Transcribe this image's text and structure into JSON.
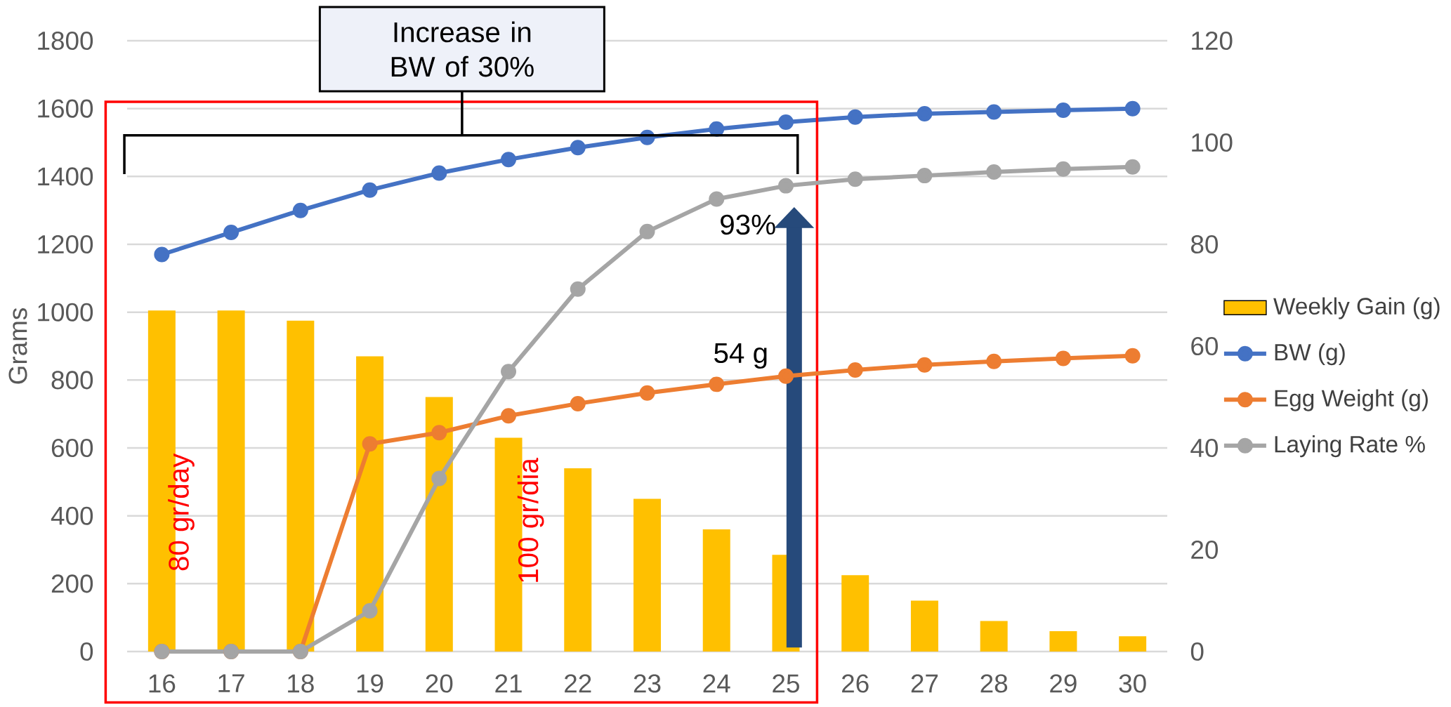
{
  "chart_data": {
    "type": "line",
    "categories": [
      "16",
      "17",
      "18",
      "19",
      "20",
      "21",
      "22",
      "23",
      "24",
      "25",
      "26",
      "27",
      "28",
      "29",
      "30"
    ],
    "ylabel": "Grams",
    "ylim": [
      0,
      1800
    ],
    "yticks": [
      0,
      200,
      400,
      600,
      800,
      1000,
      1200,
      1400,
      1600,
      1800
    ],
    "y2lim": [
      0,
      120
    ],
    "y2ticks": [
      0,
      20,
      40,
      60,
      80,
      100,
      120
    ],
    "grid": "y",
    "legend": "right",
    "marker": "circle",
    "annotations": [
      "Increase in BW of 30%",
      "80 gr/day",
      "100 gr/dia",
      "93%",
      "54 g"
    ],
    "series": [
      {
        "name": "Weekly Gain (g)",
        "type": "bar",
        "color": "#ffc000",
        "values": [
          1005,
          1005,
          975,
          870,
          750,
          630,
          540,
          450,
          360,
          285,
          225,
          150,
          90,
          60,
          45
        ]
      },
      {
        "name": "BW (g)",
        "color": "#4472c4",
        "values": [
          1170,
          1235,
          1300,
          1360,
          1410,
          1450,
          1485,
          1515,
          1540,
          1560,
          1575,
          1585,
          1590,
          1595,
          1600
        ]
      },
      {
        "name": "Egg Weight (g)",
        "axis": "y2",
        "color": "#ed7d31",
        "values": [
          0,
          0,
          0,
          40.8,
          43,
          46.3,
          48.7,
          50.8,
          52.5,
          54.1,
          55.3,
          56.3,
          57,
          57.6,
          58.1
        ]
      },
      {
        "name": "Laying Rate %",
        "axis": "y2",
        "color": "#a5a5a5",
        "values": [
          0,
          0,
          0,
          8,
          34,
          55,
          71.2,
          82.5,
          88.9,
          91.5,
          92.8,
          93.5,
          94.2,
          94.8,
          95.2
        ]
      }
    ]
  }
}
